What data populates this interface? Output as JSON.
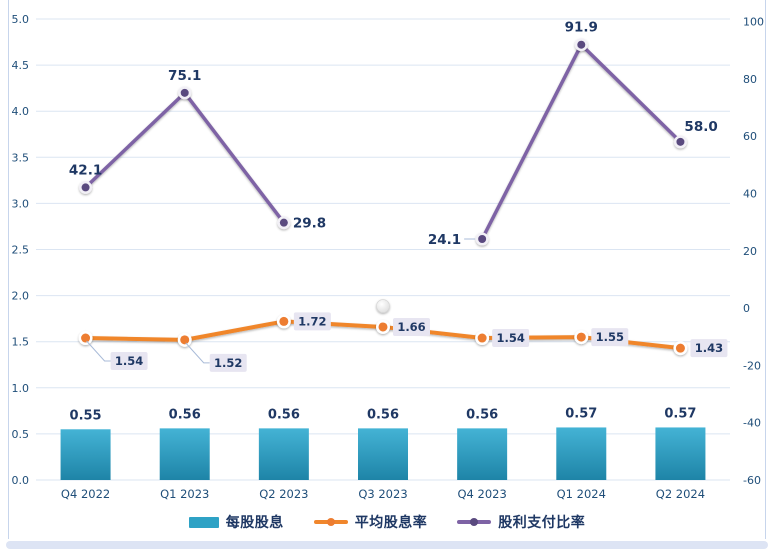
{
  "chart_data": {
    "type": "combo",
    "categories": [
      "Q4 2022",
      "Q1 2023",
      "Q2 2023",
      "Q3 2023",
      "Q4 2023",
      "Q1 2024",
      "Q2 2024"
    ],
    "series": [
      {
        "name": "每股股息",
        "type": "bar",
        "axis": "left",
        "color": "#2ea2c5",
        "color_top": "#44b3d5",
        "color_bottom": "#1e84a7",
        "values": [
          0.55,
          0.56,
          0.56,
          0.56,
          0.56,
          0.57,
          0.57
        ],
        "data_labels": [
          "0.55",
          "0.56",
          "0.56",
          "0.56",
          "0.56",
          "0.57",
          "0.57"
        ]
      },
      {
        "name": "平均股息率",
        "type": "line",
        "axis": "left",
        "color": "#f0862c",
        "marker_color": "#ed7d31",
        "values": [
          1.54,
          1.52,
          1.72,
          1.66,
          1.54,
          1.55,
          1.43
        ],
        "data_labels": [
          "1.54",
          "1.52",
          "1.72",
          "1.66",
          "1.54",
          "1.55",
          "1.43"
        ],
        "label_placement": [
          "callout-below",
          "callout-below",
          "right-box",
          "right-box",
          "right-box",
          "right-box",
          "right-box"
        ],
        "label_box_color": "#e7e5f1"
      },
      {
        "name": "股利支付比率",
        "type": "line",
        "axis": "right",
        "color": "#7e63a5",
        "marker_color": "#5a4a7f",
        "values": [
          42.1,
          75.1,
          29.8,
          null,
          24.1,
          91.9,
          58.0
        ],
        "data_labels": [
          "42.1",
          "75.1",
          "29.8",
          null,
          "24.1",
          "91.9",
          "58.0"
        ],
        "label_placement": [
          "above",
          "above",
          "right",
          null,
          "left-leader",
          "above",
          "above-right"
        ]
      }
    ],
    "left_axis": {
      "min": 0,
      "max": 5,
      "step": 0.5,
      "tick_labels": [
        "0.0",
        "0.5",
        "1.0",
        "1.5",
        "2.0",
        "2.5",
        "3.0",
        "3.5",
        "4.0",
        "4.5",
        "5.0"
      ],
      "tick_values": [
        0,
        0.5,
        1,
        1.5,
        2,
        2.5,
        3,
        3.5,
        4,
        4.5,
        5
      ]
    },
    "right_axis": {
      "min": -60,
      "max": 100,
      "step": 20,
      "tick_labels": [
        "-60",
        "-40",
        "-20",
        "0",
        "20",
        "40",
        "60",
        "80",
        "100"
      ],
      "tick_values": [
        -60,
        -40,
        -20,
        0,
        20,
        40,
        60,
        80,
        100
      ]
    },
    "gap_marker": {
      "category_index": 3,
      "right_axis_value": 0.7,
      "style": "white-dot"
    },
    "grid": "horizontal-on",
    "legend_position": "bottom",
    "title": ""
  },
  "legend": {
    "items": [
      {
        "label": "每股股息",
        "swatch": "bar-swatch"
      },
      {
        "label": "平均股息率",
        "swatch": "line-dot-swatch"
      },
      {
        "label": "股利支付比率",
        "swatch": "line-dot-swatch"
      }
    ]
  },
  "colors": {
    "data_label_text": "#1f3864",
    "axis_tick_text": "#1f4e79",
    "gridline": "#dbe5f2",
    "leader_line": "#a9bbd8",
    "label_box_fill": "#e7e5f1",
    "frame_border": "#c7d5ec",
    "bottom_strip": "#dde4f4"
  }
}
